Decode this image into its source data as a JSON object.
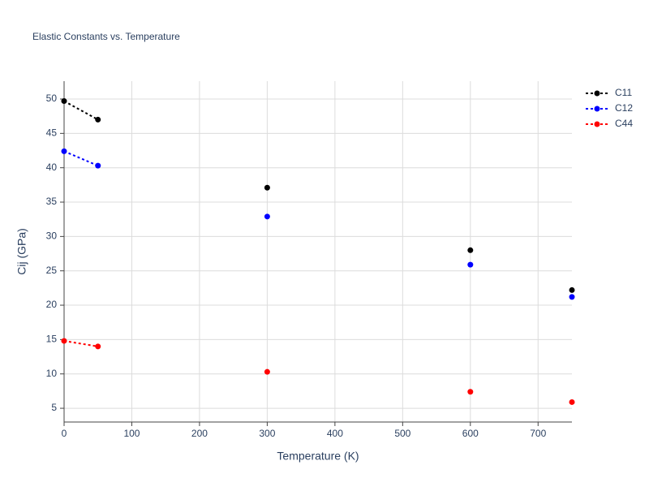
{
  "chart_data": {
    "type": "line",
    "title": "Elastic Constants vs. Temperature",
    "x_label": "Temperature (K)",
    "y_label": "Cij (GPa)",
    "x": [
      0,
      50,
      100,
      300,
      400,
      600,
      700,
      750
    ],
    "series": [
      {
        "name": "C11",
        "color": "#000000",
        "values": [
          49.7,
          47.0,
          null,
          37.1,
          null,
          28.0,
          null,
          22.2
        ]
      },
      {
        "name": "C12",
        "color": "#0000ff",
        "values": [
          42.4,
          40.3,
          null,
          32.9,
          null,
          25.9,
          null,
          21.2
        ]
      },
      {
        "name": "C44",
        "color": "#ff0000",
        "values": [
          14.8,
          14.0,
          null,
          10.3,
          null,
          7.4,
          null,
          5.9
        ]
      }
    ],
    "xlim": [
      0,
      750
    ],
    "xticks": [
      0,
      100,
      200,
      300,
      400,
      500,
      600,
      700
    ],
    "ylim": [
      3,
      52.6
    ],
    "yticks": [
      5,
      10,
      15,
      20,
      25,
      30,
      35,
      40,
      45,
      50
    ],
    "grid": true,
    "legend": "right"
  }
}
